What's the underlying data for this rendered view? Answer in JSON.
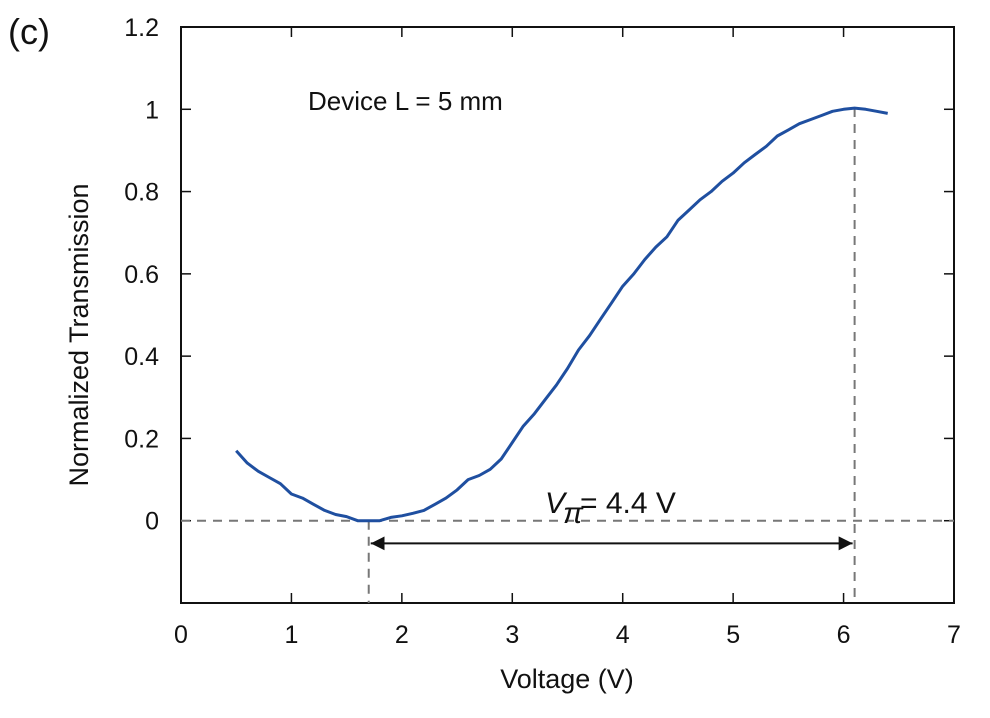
{
  "panel_label": "(c)",
  "chart_data": {
    "type": "line",
    "xlabel": "Voltage (V)",
    "ylabel": "Normalized Transmission",
    "xlim": [
      0,
      7
    ],
    "ylim": [
      -0.2,
      1.2
    ],
    "xticks": [
      0,
      1,
      2,
      3,
      4,
      5,
      6,
      7
    ],
    "yticks": [
      0,
      0.2,
      0.4,
      0.6,
      0.8,
      1,
      1.2
    ],
    "xtick_labels": [
      "0",
      "1",
      "2",
      "3",
      "4",
      "5",
      "6",
      "7"
    ],
    "ytick_labels": [
      "0",
      "0.2",
      "0.4",
      "0.6",
      "0.8",
      "1",
      "1.2"
    ],
    "grid": false,
    "series": [
      {
        "color": "#1f4fa0",
        "x": [
          0.5,
          0.6,
          0.7,
          0.8,
          0.9,
          1.0,
          1.1,
          1.2,
          1.3,
          1.4,
          1.5,
          1.6,
          1.7,
          1.8,
          1.9,
          2.0,
          2.1,
          2.2,
          2.3,
          2.4,
          2.5,
          2.6,
          2.7,
          2.8,
          2.9,
          3.0,
          3.1,
          3.2,
          3.3,
          3.4,
          3.5,
          3.6,
          3.7,
          3.8,
          3.9,
          4.0,
          4.1,
          4.2,
          4.3,
          4.4,
          4.5,
          4.6,
          4.7,
          4.8,
          4.9,
          5.0,
          5.1,
          5.2,
          5.3,
          5.4,
          5.5,
          5.6,
          5.7,
          5.8,
          5.9,
          6.0,
          6.1,
          6.2,
          6.3,
          6.4
        ],
        "y": [
          0.17,
          0.14,
          0.12,
          0.105,
          0.09,
          0.065,
          0.055,
          0.04,
          0.025,
          0.015,
          0.01,
          0.0,
          0.0,
          0.0,
          0.008,
          0.012,
          0.018,
          0.025,
          0.04,
          0.055,
          0.075,
          0.1,
          0.11,
          0.125,
          0.15,
          0.19,
          0.23,
          0.26,
          0.295,
          0.33,
          0.37,
          0.415,
          0.45,
          0.49,
          0.53,
          0.57,
          0.6,
          0.635,
          0.665,
          0.69,
          0.73,
          0.755,
          0.78,
          0.8,
          0.825,
          0.845,
          0.87,
          0.89,
          0.91,
          0.935,
          0.95,
          0.965,
          0.975,
          0.985,
          0.995,
          1.0,
          1.003,
          1.0,
          0.995,
          0.99
        ]
      }
    ],
    "reference_lines": {
      "horizontal_y": 0,
      "vertical_x": [
        1.7,
        6.1
      ]
    },
    "arrow": {
      "from_x": 1.7,
      "to_x": 6.1,
      "y": -0.055
    },
    "annotations": {
      "device": "Device L = 5 mm",
      "vpi_symbol": "V",
      "vpi_subscript": "π",
      "vpi_value": "= 4.4 V"
    }
  }
}
